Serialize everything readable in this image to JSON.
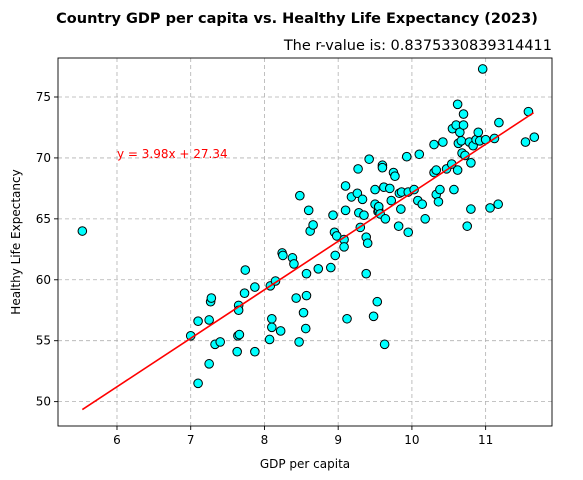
{
  "chart_data": {
    "type": "scatter",
    "title": "Country GDP per capita vs. Healthy Life Expectancy (2023)",
    "subtitle": "The r-value is: 0.8375330839314411",
    "xlabel": "GDP per capita",
    "ylabel": "Healthy Life Expectancy",
    "xlim": [
      5.2,
      11.9
    ],
    "ylim": [
      48,
      78.2
    ],
    "xticks": [
      6,
      7,
      8,
      9,
      10,
      11
    ],
    "yticks": [
      50,
      55,
      60,
      65,
      70,
      75
    ],
    "grid": true,
    "point_color": "#00ffff",
    "point_edge_color": "#000000",
    "regression": {
      "label": "y = 3.98x + 27.34",
      "slope": 3.98,
      "intercept": 27.34,
      "x_range": [
        5.53,
        11.65
      ],
      "color": "#ff0000",
      "label_anchor": [
        6.0,
        70.0
      ]
    },
    "points": [
      [
        5.53,
        64.0
      ],
      [
        7.0,
        55.4
      ],
      [
        7.1,
        51.5
      ],
      [
        7.1,
        56.6
      ],
      [
        7.25,
        53.1
      ],
      [
        7.25,
        56.7
      ],
      [
        7.27,
        58.2
      ],
      [
        7.28,
        58.5
      ],
      [
        7.33,
        54.7
      ],
      [
        7.4,
        54.9
      ],
      [
        7.63,
        54.1
      ],
      [
        7.64,
        55.4
      ],
      [
        7.65,
        57.9
      ],
      [
        7.65,
        57.5
      ],
      [
        7.66,
        55.5
      ],
      [
        7.73,
        58.9
      ],
      [
        7.74,
        60.8
      ],
      [
        7.87,
        54.1
      ],
      [
        7.87,
        59.4
      ],
      [
        8.07,
        55.1
      ],
      [
        8.08,
        59.5
      ],
      [
        8.1,
        56.8
      ],
      [
        8.1,
        56.1
      ],
      [
        8.15,
        59.9
      ],
      [
        8.22,
        55.8
      ],
      [
        8.24,
        62.2
      ],
      [
        8.25,
        62.0
      ],
      [
        8.38,
        61.8
      ],
      [
        8.4,
        61.3
      ],
      [
        8.43,
        58.5
      ],
      [
        8.47,
        54.9
      ],
      [
        8.48,
        66.9
      ],
      [
        8.53,
        57.3
      ],
      [
        8.56,
        56.0
      ],
      [
        8.57,
        58.7
      ],
      [
        8.57,
        60.5
      ],
      [
        8.6,
        65.7
      ],
      [
        8.62,
        64.0
      ],
      [
        8.66,
        64.5
      ],
      [
        8.73,
        60.9
      ],
      [
        8.9,
        61.0
      ],
      [
        8.93,
        65.3
      ],
      [
        8.95,
        63.9
      ],
      [
        8.96,
        62.0
      ],
      [
        8.98,
        63.6
      ],
      [
        9.08,
        63.3
      ],
      [
        9.08,
        62.7
      ],
      [
        9.1,
        65.7
      ],
      [
        9.1,
        67.7
      ],
      [
        9.12,
        56.8
      ],
      [
        9.18,
        66.8
      ],
      [
        9.26,
        67.1
      ],
      [
        9.27,
        69.1
      ],
      [
        9.28,
        65.5
      ],
      [
        9.3,
        64.3
      ],
      [
        9.33,
        66.6
      ],
      [
        9.35,
        65.3
      ],
      [
        9.38,
        60.5
      ],
      [
        9.38,
        63.5
      ],
      [
        9.4,
        63.0
      ],
      [
        9.42,
        69.9
      ],
      [
        9.48,
        57.0
      ],
      [
        9.5,
        66.2
      ],
      [
        9.5,
        67.4
      ],
      [
        9.53,
        58.2
      ],
      [
        9.54,
        65.6
      ],
      [
        9.55,
        65.7
      ],
      [
        9.55,
        66.0
      ],
      [
        9.57,
        65.4
      ],
      [
        9.6,
        69.4
      ],
      [
        9.6,
        69.2
      ],
      [
        9.62,
        67.6
      ],
      [
        9.63,
        54.7
      ],
      [
        9.64,
        65.0
      ],
      [
        9.7,
        67.5
      ],
      [
        9.72,
        66.5
      ],
      [
        9.75,
        68.8
      ],
      [
        9.77,
        68.5
      ],
      [
        9.82,
        64.4
      ],
      [
        9.83,
        67.1
      ],
      [
        9.85,
        65.8
      ],
      [
        9.86,
        67.2
      ],
      [
        9.93,
        70.1
      ],
      [
        9.95,
        63.9
      ],
      [
        9.95,
        67.2
      ],
      [
        10.03,
        67.4
      ],
      [
        10.08,
        66.5
      ],
      [
        10.1,
        70.3
      ],
      [
        10.14,
        66.2
      ],
      [
        10.18,
        65.0
      ],
      [
        10.3,
        71.1
      ],
      [
        10.3,
        68.8
      ],
      [
        10.33,
        69.0
      ],
      [
        10.33,
        67.0
      ],
      [
        10.36,
        66.4
      ],
      [
        10.38,
        67.4
      ],
      [
        10.42,
        71.3
      ],
      [
        10.47,
        69.1
      ],
      [
        10.54,
        69.5
      ],
      [
        10.55,
        72.4
      ],
      [
        10.57,
        67.4
      ],
      [
        10.6,
        72.7
      ],
      [
        10.62,
        74.4
      ],
      [
        10.62,
        69.0
      ],
      [
        10.63,
        71.2
      ],
      [
        10.65,
        72.1
      ],
      [
        10.67,
        71.4
      ],
      [
        10.68,
        70.4
      ],
      [
        10.7,
        73.6
      ],
      [
        10.7,
        72.7
      ],
      [
        10.72,
        70.2
      ],
      [
        10.75,
        64.4
      ],
      [
        10.78,
        71.3
      ],
      [
        10.8,
        65.8
      ],
      [
        10.8,
        69.6
      ],
      [
        10.83,
        71.0
      ],
      [
        10.87,
        71.5
      ],
      [
        10.9,
        72.1
      ],
      [
        10.92,
        71.4
      ],
      [
        10.96,
        77.3
      ],
      [
        11.0,
        71.5
      ],
      [
        11.06,
        65.9
      ],
      [
        11.12,
        71.6
      ],
      [
        11.17,
        66.2
      ],
      [
        11.18,
        72.9
      ],
      [
        11.54,
        71.3
      ],
      [
        11.58,
        73.8
      ],
      [
        11.66,
        71.7
      ]
    ]
  }
}
